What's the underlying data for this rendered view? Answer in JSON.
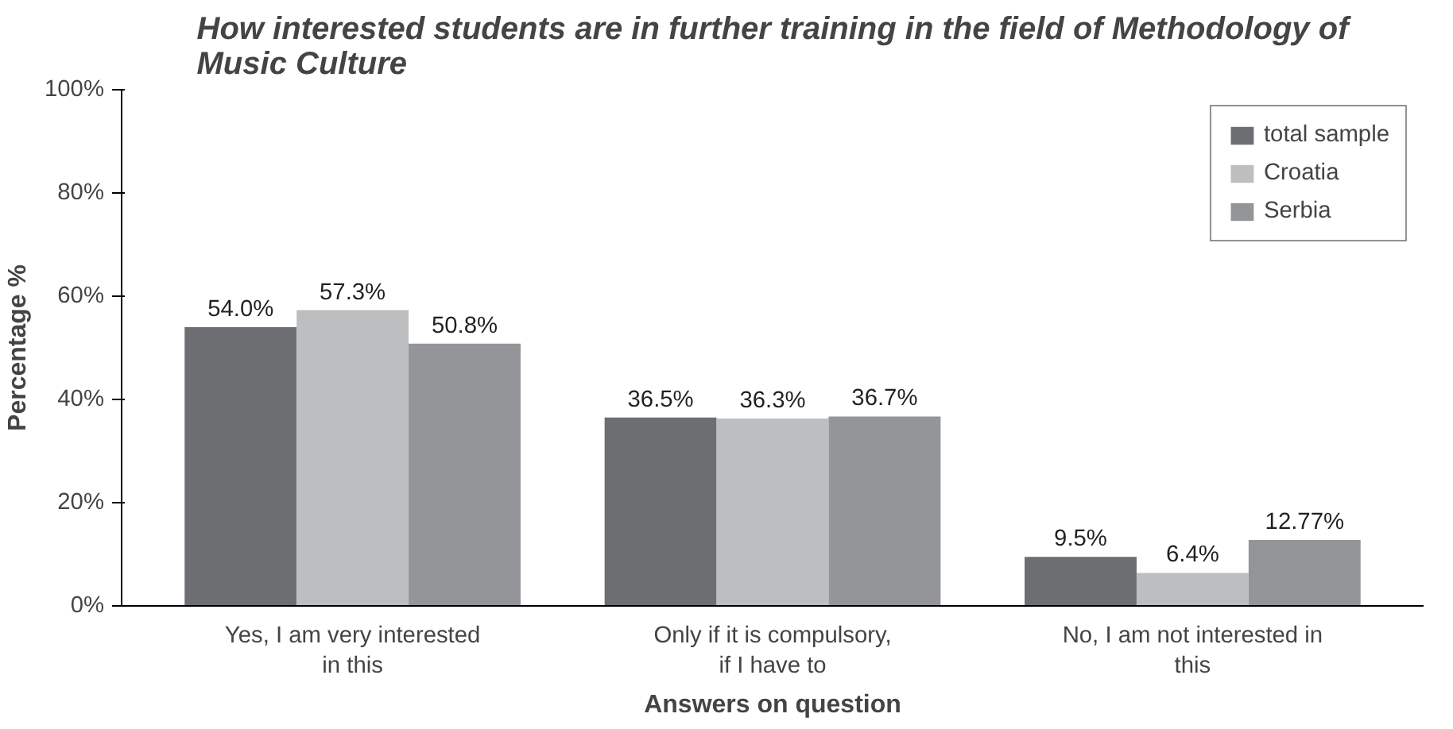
{
  "chart_data": {
    "type": "bar",
    "title": "How interested students are in further training in the field of Methodology of Music Culture",
    "xlabel": "Answers on question",
    "ylabel": "Percentage %",
    "categories": [
      "Yes, I am very interested in this",
      "Only if it is compulsory, if I have to",
      "No, I am not interested in this"
    ],
    "series": [
      {
        "name": "total sample",
        "color": "#6d6e71",
        "values": [
          54.0,
          36.5,
          9.5
        ],
        "value_labels": [
          "54.0%",
          "36.5%",
          "9.5%"
        ]
      },
      {
        "name": "Croatia",
        "color": "#bcbec0",
        "values": [
          57.3,
          36.3,
          6.4
        ],
        "value_labels": [
          "57.3%",
          "36.3%",
          "6.4%"
        ]
      },
      {
        "name": "Serbia",
        "color": "#939598",
        "values": [
          50.8,
          36.7,
          12.77
        ],
        "value_labels": [
          "50.8%",
          "36.7%",
          "12.77%"
        ]
      }
    ],
    "ylim": [
      0,
      100
    ],
    "yticks": [
      {
        "value": 0,
        "label": "0%"
      },
      {
        "value": 20,
        "label": "20%"
      },
      {
        "value": 40,
        "label": "40%"
      },
      {
        "value": 60,
        "label": "60%"
      },
      {
        "value": 80,
        "label": "80%"
      },
      {
        "value": 100,
        "label": "100%"
      }
    ],
    "grid": false,
    "legend": "top right"
  }
}
